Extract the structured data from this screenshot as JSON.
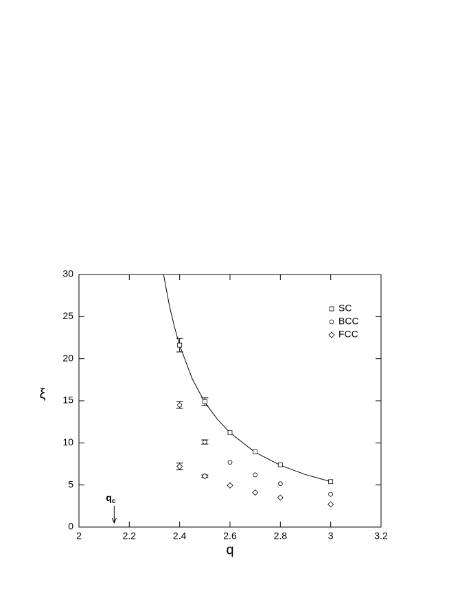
{
  "chart_data": {
    "type": "scatter",
    "x_label": "q",
    "y_label": "ξ",
    "xlim": [
      2,
      3.2
    ],
    "xticks": [
      2,
      2.2,
      2.4,
      2.6,
      2.8,
      3,
      3.2
    ],
    "ylim": [
      0,
      30
    ],
    "yticks": [
      0,
      5,
      10,
      15,
      20,
      25,
      30
    ],
    "series": [
      {
        "name": "SC",
        "marker": "square",
        "color": "#000000",
        "x": [
          2.4,
          2.5,
          2.6,
          2.7,
          2.8,
          3.0
        ],
        "values": [
          21.6,
          14.9,
          11.2,
          8.95,
          7.4,
          5.4
        ],
        "errors": [
          0.8,
          0.45,
          null,
          null,
          null,
          null
        ]
      },
      {
        "name": "BCC",
        "marker": "circle",
        "color": "#000000",
        "x": [
          2.4,
          2.5,
          2.6,
          2.7,
          2.8,
          3.0
        ],
        "values": [
          14.5,
          10.1,
          7.7,
          6.2,
          5.15,
          3.9
        ],
        "errors": [
          0.4,
          0.25,
          null,
          null,
          null,
          null
        ]
      },
      {
        "name": "FCC",
        "marker": "diamond",
        "color": "#000000",
        "x": [
          2.4,
          2.5,
          2.6,
          2.7,
          2.8,
          3.0
        ],
        "values": [
          7.2,
          6.05,
          4.95,
          4.1,
          3.5,
          2.7
        ],
        "errors": [
          0.4,
          0.15,
          null,
          null,
          null,
          null
        ]
      }
    ],
    "curve": {
      "x": [
        2.336,
        2.36,
        2.38,
        2.4,
        2.45,
        2.5,
        2.55,
        2.6,
        2.7,
        2.8,
        2.9,
        3.0
      ],
      "values": [
        30.0,
        26.2,
        23.7,
        21.6,
        17.6,
        14.8,
        12.8,
        11.2,
        8.88,
        7.34,
        6.23,
        5.4
      ]
    },
    "annotation": {
      "text": "q",
      "sub": "c",
      "x": 2.14
    }
  }
}
